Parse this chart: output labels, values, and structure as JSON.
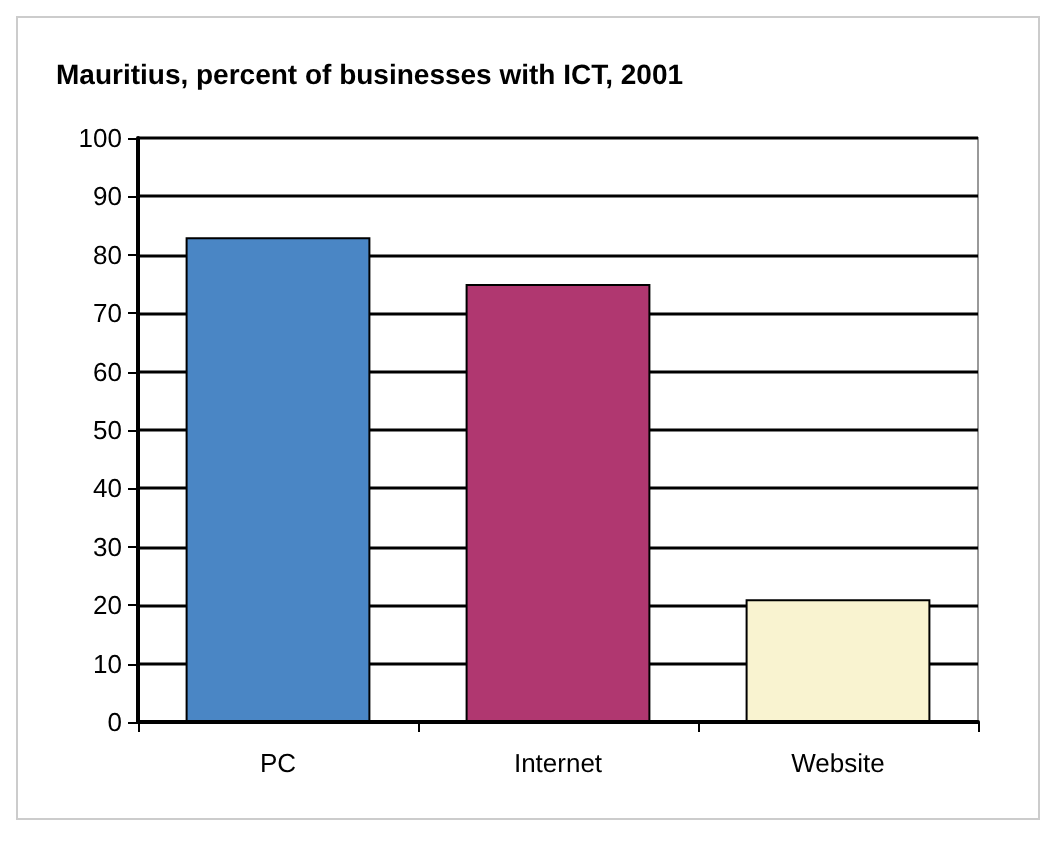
{
  "chart_data": {
    "type": "bar",
    "title": "Mauritius, percent of businesses with ICT, 2001",
    "categories": [
      "PC",
      "Internet",
      "Website"
    ],
    "values": [
      83,
      75,
      21
    ],
    "colors": [
      "#4a86c5",
      "#b03770",
      "#f9f3d0"
    ],
    "ylim": [
      0,
      100
    ],
    "yticks": [
      0,
      10,
      20,
      30,
      40,
      50,
      60,
      70,
      80,
      90,
      100
    ],
    "grid": "y"
  }
}
